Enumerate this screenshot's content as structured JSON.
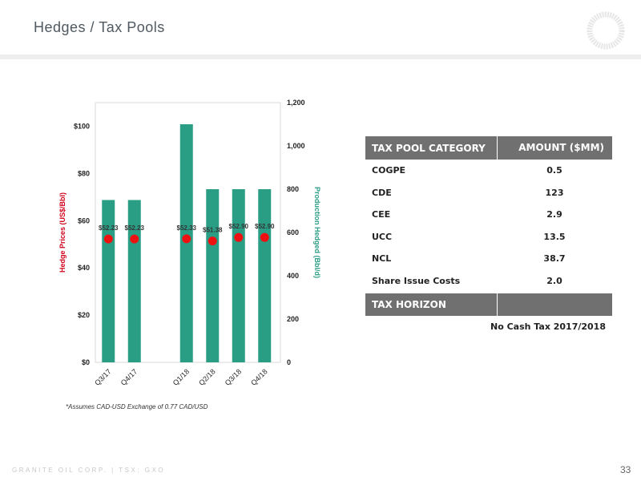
{
  "page": {
    "title": "Hedges / Tax Pools",
    "footer_company": "GRANITE OIL CORP. | TSX: GXO",
    "page_number": "33",
    "footnote": "*Assumes CAD-USD Exchange of 0.77 CAD/USD"
  },
  "colors": {
    "bar": "#2a9d85",
    "point": "#ee1111",
    "left_axis_label": "#d0021b",
    "right_axis_label": "#2a9d85",
    "table_header": "#707070"
  },
  "icons": {
    "logo": "ring-logo-icon"
  },
  "chart_data": {
    "type": "bar",
    "categories": [
      "Q3/17",
      "Q4/17",
      "",
      "Q1/18",
      "Q2/18",
      "Q3/18",
      "Q4/18"
    ],
    "grid": false,
    "series": [
      {
        "name": "Production Hedged (Bbl/d)",
        "kind": "bar",
        "axis": "right",
        "values": [
          750,
          750,
          null,
          1100,
          800,
          800,
          800
        ]
      },
      {
        "name": "Hedge Prices (US$/Bbl)",
        "kind": "scatter",
        "axis": "left",
        "values": [
          52.23,
          52.23,
          null,
          52.33,
          51.38,
          52.9,
          52.9
        ],
        "labels": [
          "$52.23",
          "$52.23",
          "",
          "$52.33",
          "$51.38",
          "$52.90",
          "$52.90"
        ]
      }
    ],
    "left_axis": {
      "label": "Hedge Prices (US$/Bbl)",
      "range": [
        0,
        110
      ],
      "ticks": [
        0,
        20,
        40,
        60,
        80,
        100
      ],
      "tick_labels": [
        "$0",
        "$20",
        "$40",
        "$60",
        "$80",
        "$100"
      ]
    },
    "right_axis": {
      "label": "Production Hedged (Bbl/d)",
      "range": [
        0,
        1200
      ],
      "ticks": [
        0,
        200,
        400,
        600,
        800,
        1000,
        1200
      ],
      "tick_labels": [
        "0",
        "200",
        "400",
        "600",
        "800",
        "1,000",
        "1,200"
      ]
    }
  },
  "tax_table": {
    "headers": [
      "TAX POOL CATEGORY",
      "AMOUNT ($MM)"
    ],
    "rows": [
      {
        "category": "COGPE",
        "amount": "0.5"
      },
      {
        "category": "CDE",
        "amount": "123"
      },
      {
        "category": "CEE",
        "amount": "2.9"
      },
      {
        "category": "UCC",
        "amount": "13.5"
      },
      {
        "category": "NCL",
        "amount": "38.7"
      },
      {
        "category": "Share Issue Costs",
        "amount": "2.0"
      }
    ],
    "horizon_label": "TAX HORIZON",
    "horizon_value": "No Cash Tax 2017/2018"
  }
}
